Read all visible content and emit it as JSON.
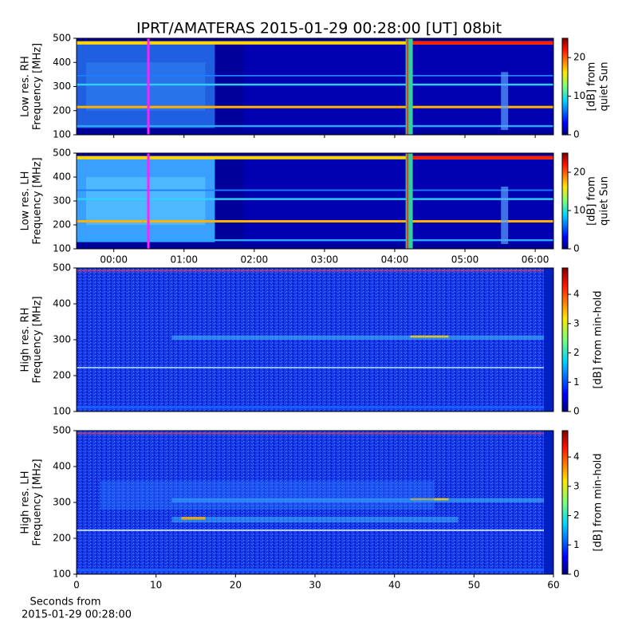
{
  "chart_data": [
    {
      "type": "heatmap",
      "title": "IPRT/AMATERAS 2015-01-29 00:28:00 [UT]   08bit",
      "ylabel": [
        "Low res. RH",
        "Frequency [MHz]"
      ],
      "xlim": [
        -0.53,
        6.26
      ],
      "ylim": [
        100,
        500
      ],
      "yticks": [
        100,
        200,
        300,
        400,
        500
      ],
      "colormap": "jet",
      "colorbar": {
        "label": [
          "[dB] from",
          "quiet Sun"
        ],
        "lim": [
          0,
          25
        ],
        "ticks": [
          0,
          10,
          20
        ]
      }
    },
    {
      "type": "heatmap",
      "ylabel": [
        "Low res. LH",
        "Frequency [MHz]"
      ],
      "xlim": [
        -0.53,
        6.26
      ],
      "ylim": [
        100,
        500
      ],
      "yticks": [
        100,
        200,
        300,
        400,
        500
      ],
      "xticks": [
        {
          "value": 0,
          "label": "00:00"
        },
        {
          "value": 1,
          "label": "01:00"
        },
        {
          "value": 2,
          "label": "02:00"
        },
        {
          "value": 3,
          "label": "03:00"
        },
        {
          "value": 4,
          "label": "04:00"
        },
        {
          "value": 5,
          "label": "05:00"
        },
        {
          "value": 6,
          "label": "06:00"
        }
      ],
      "colormap": "jet",
      "colorbar": {
        "label": [
          "[dB] from",
          "quiet Sun"
        ],
        "lim": [
          0,
          25
        ],
        "ticks": [
          0,
          10,
          20
        ]
      }
    },
    {
      "type": "heatmap",
      "ylabel": [
        "High res. RH",
        "Frequency [MHz]"
      ],
      "xlim": [
        0,
        60
      ],
      "ylim": [
        100,
        500
      ],
      "yticks": [
        100,
        200,
        300,
        400,
        500
      ],
      "colormap": "jet",
      "colorbar": {
        "label": [
          "[dB] from min-hold"
        ],
        "lim": [
          0,
          4.9
        ],
        "ticks": [
          0,
          1,
          2,
          3,
          4
        ]
      }
    },
    {
      "type": "heatmap",
      "ylabel": [
        "High res. LH",
        "Frequency [MHz]"
      ],
      "xlabel": [
        "Seconds from",
        "2015-01-29 00:28:00"
      ],
      "xlim": [
        0,
        60
      ],
      "ylim": [
        100,
        500
      ],
      "yticks": [
        100,
        200,
        300,
        400,
        500
      ],
      "xticks": [
        0,
        10,
        20,
        30,
        40,
        50,
        60
      ],
      "colormap": "jet",
      "colorbar": {
        "label": [
          "[dB] from min-hold"
        ],
        "lim": [
          0,
          4.9
        ],
        "ticks": [
          0,
          1,
          2,
          3,
          4
        ]
      }
    }
  ]
}
